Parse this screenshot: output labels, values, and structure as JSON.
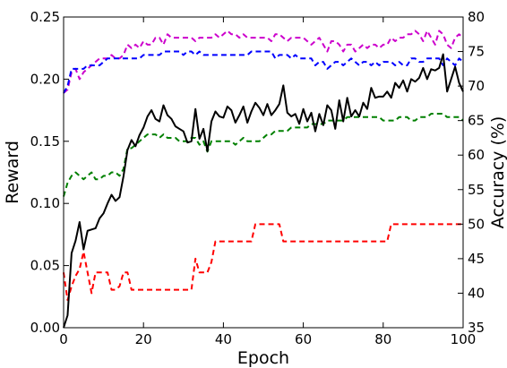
{
  "chart_data": {
    "type": "line",
    "title": "",
    "xlabel": "Epoch",
    "ylabel_left": "Reward",
    "ylabel_right": "Accuracy (%)",
    "xlim": [
      0,
      100
    ],
    "ylim_left": [
      0.0,
      0.25
    ],
    "ylim_right": [
      35,
      80
    ],
    "xticks": [
      0,
      20,
      40,
      60,
      80,
      100
    ],
    "xtick_labels": [
      "0",
      "20",
      "40",
      "60",
      "80",
      "100"
    ],
    "yticks_left": [
      0.0,
      0.05,
      0.1,
      0.15,
      0.2,
      0.25
    ],
    "ytick_labels_left": [
      "0.00",
      "0.05",
      "0.10",
      "0.15",
      "0.20",
      "0.25"
    ],
    "yticks_right": [
      35,
      40,
      45,
      50,
      55,
      60,
      65,
      70,
      75,
      80
    ],
    "ytick_labels_right": [
      "35",
      "40",
      "45",
      "50",
      "55",
      "60",
      "65",
      "70",
      "75",
      "80"
    ],
    "grid": false,
    "legend": "none",
    "x": [
      0,
      1,
      2,
      3,
      4,
      5,
      6,
      7,
      8,
      9,
      10,
      11,
      12,
      13,
      14,
      15,
      16,
      17,
      18,
      19,
      20,
      21,
      22,
      23,
      24,
      25,
      26,
      27,
      28,
      29,
      30,
      31,
      32,
      33,
      34,
      35,
      36,
      37,
      38,
      39,
      40,
      41,
      42,
      43,
      44,
      45,
      46,
      47,
      48,
      49,
      50,
      51,
      52,
      53,
      54,
      55,
      56,
      57,
      58,
      59,
      60,
      61,
      62,
      63,
      64,
      65,
      66,
      67,
      68,
      69,
      70,
      71,
      72,
      73,
      74,
      75,
      76,
      77,
      78,
      79,
      80,
      81,
      82,
      83,
      84,
      85,
      86,
      87,
      88,
      89,
      90,
      91,
      92,
      93,
      94,
      95,
      96,
      97,
      98,
      99,
      100
    ],
    "series": [
      {
        "axis": "left",
        "color": "#000000",
        "style": "solid",
        "values": [
          0.0,
          0.01,
          0.06,
          0.07,
          0.085,
          0.063,
          0.078,
          0.079,
          0.08,
          0.088,
          0.092,
          0.1,
          0.107,
          0.102,
          0.105,
          0.122,
          0.143,
          0.151,
          0.146,
          0.155,
          0.161,
          0.17,
          0.175,
          0.168,
          0.166,
          0.179,
          0.171,
          0.168,
          0.162,
          0.16,
          0.158,
          0.149,
          0.15,
          0.176,
          0.152,
          0.16,
          0.142,
          0.166,
          0.174,
          0.17,
          0.169,
          0.178,
          0.175,
          0.165,
          0.171,
          0.178,
          0.165,
          0.174,
          0.181,
          0.177,
          0.171,
          0.18,
          0.171,
          0.175,
          0.18,
          0.195,
          0.173,
          0.17,
          0.172,
          0.164,
          0.176,
          0.166,
          0.173,
          0.158,
          0.172,
          0.163,
          0.179,
          0.175,
          0.16,
          0.183,
          0.166,
          0.185,
          0.17,
          0.175,
          0.17,
          0.181,
          0.176,
          0.193,
          0.185,
          0.186,
          0.186,
          0.19,
          0.185,
          0.197,
          0.193,
          0.199,
          0.19,
          0.2,
          0.198,
          0.201,
          0.209,
          0.2,
          0.208,
          0.207,
          0.209,
          0.22,
          0.19,
          0.2,
          0.21,
          0.197,
          0.19
        ]
      },
      {
        "axis": "right",
        "color": "#cc00cc",
        "style": "dashed",
        "values": [
          69,
          69.5,
          72,
          72.5,
          71,
          72,
          72.5,
          73,
          73.5,
          74,
          74,
          74,
          74.5,
          74,
          74,
          74.5,
          76,
          75.5,
          76,
          75.5,
          76.5,
          76,
          76,
          77,
          77,
          76,
          77.5,
          77,
          77,
          77,
          77,
          77,
          77,
          76.5,
          77,
          77,
          77,
          77,
          77.5,
          77,
          77.5,
          78,
          77.5,
          77.5,
          77,
          77.5,
          77,
          77,
          77,
          77,
          77,
          77,
          76.5,
          77.5,
          77.5,
          77,
          76.5,
          77,
          77,
          77,
          77,
          76.5,
          76,
          76.5,
          77,
          76,
          75,
          76.5,
          76.5,
          76,
          75,
          76,
          76,
          75,
          75.5,
          76,
          75.5,
          76,
          76,
          75.5,
          76,
          76,
          77,
          76.5,
          77,
          77,
          77.5,
          77.5,
          78,
          77.5,
          76.5,
          78,
          77,
          76,
          78,
          77.5,
          76,
          75.5,
          77,
          77.5,
          77
        ]
      },
      {
        "axis": "right",
        "color": "#0000ff",
        "style": "dashed",
        "values": [
          69,
          70,
          72.5,
          72.5,
          72.5,
          72.5,
          73,
          73,
          73,
          73,
          73.5,
          74,
          74,
          74,
          74,
          74,
          74,
          74,
          74,
          74,
          74.5,
          74.5,
          74.5,
          74.5,
          74.5,
          75,
          75,
          75,
          75,
          75,
          74.5,
          75,
          75,
          74.5,
          75,
          74.5,
          74.5,
          74.5,
          74.5,
          74.5,
          74.5,
          74.5,
          74.5,
          74.5,
          74.5,
          74.5,
          74.5,
          75,
          75,
          75,
          75,
          75,
          75,
          74,
          74.5,
          74.5,
          74.5,
          74,
          74.5,
          74,
          74,
          74,
          74,
          73,
          73.5,
          73.5,
          72.5,
          73,
          73.5,
          73.5,
          73,
          73.5,
          74,
          73.5,
          73,
          73.5,
          73.5,
          73,
          73.5,
          73,
          73.5,
          73.5,
          73.5,
          73,
          73.5,
          73,
          73,
          74,
          74,
          73.5,
          73.5,
          74,
          74,
          74,
          74,
          73,
          74,
          73.5,
          73,
          74,
          73.5
        ]
      },
      {
        "axis": "right",
        "color": "#008000",
        "style": "dashed",
        "values": [
          54,
          56,
          57,
          57.5,
          57,
          56.5,
          57,
          57.5,
          56.5,
          56.5,
          57,
          57,
          57.5,
          57.5,
          57,
          58,
          61,
          61,
          61.5,
          62,
          62.5,
          63,
          63,
          63,
          62.5,
          63,
          62.5,
          62.5,
          62.5,
          62,
          62,
          62,
          62.5,
          62.5,
          61.5,
          62,
          60.5,
          62,
          62,
          62,
          62,
          62,
          62,
          61.5,
          62,
          62.5,
          62,
          62,
          62,
          62,
          62.5,
          63,
          63,
          63.5,
          63.5,
          63.5,
          63.5,
          64,
          64,
          64,
          64,
          64,
          64.5,
          64.5,
          64.5,
          64.5,
          65,
          65,
          65,
          65,
          65,
          65.5,
          65.5,
          65.5,
          65.5,
          65.5,
          65.5,
          65.5,
          65.5,
          65.5,
          65,
          65,
          65,
          65,
          65.5,
          65.5,
          65.5,
          65,
          65,
          65.5,
          65.5,
          65.5,
          66,
          66,
          66,
          66,
          65.5,
          65.5,
          65.5,
          65.5,
          65
        ]
      },
      {
        "axis": "right",
        "color": "#ff0000",
        "style": "dashed",
        "values": [
          43,
          39,
          41,
          42.5,
          43.5,
          46,
          43,
          40,
          43,
          43,
          43,
          43,
          40.5,
          40.5,
          41,
          43,
          43,
          40.5,
          40.5,
          40.5,
          40.5,
          40.5,
          40.5,
          40.5,
          40.5,
          40.5,
          40.5,
          40.5,
          40.5,
          40.5,
          40.5,
          40.5,
          40.5,
          45,
          43,
          43,
          43,
          44.5,
          47.5,
          47.5,
          47.5,
          47.5,
          47.5,
          47.5,
          47.5,
          47.5,
          47.5,
          47.5,
          50,
          50,
          50,
          50,
          50,
          50,
          50,
          47.5,
          47.5,
          47.5,
          47.5,
          47.5,
          47.5,
          47.5,
          47.5,
          47.5,
          47.5,
          47.5,
          47.5,
          47.5,
          47.5,
          47.5,
          47.5,
          47.5,
          47.5,
          47.5,
          47.5,
          47.5,
          47.5,
          47.5,
          47.5,
          47.5,
          47.5,
          47.5,
          50,
          50,
          50,
          50,
          50,
          50,
          50,
          50,
          50,
          50,
          50,
          50,
          50,
          50,
          50,
          50,
          50,
          50,
          50
        ]
      }
    ]
  }
}
